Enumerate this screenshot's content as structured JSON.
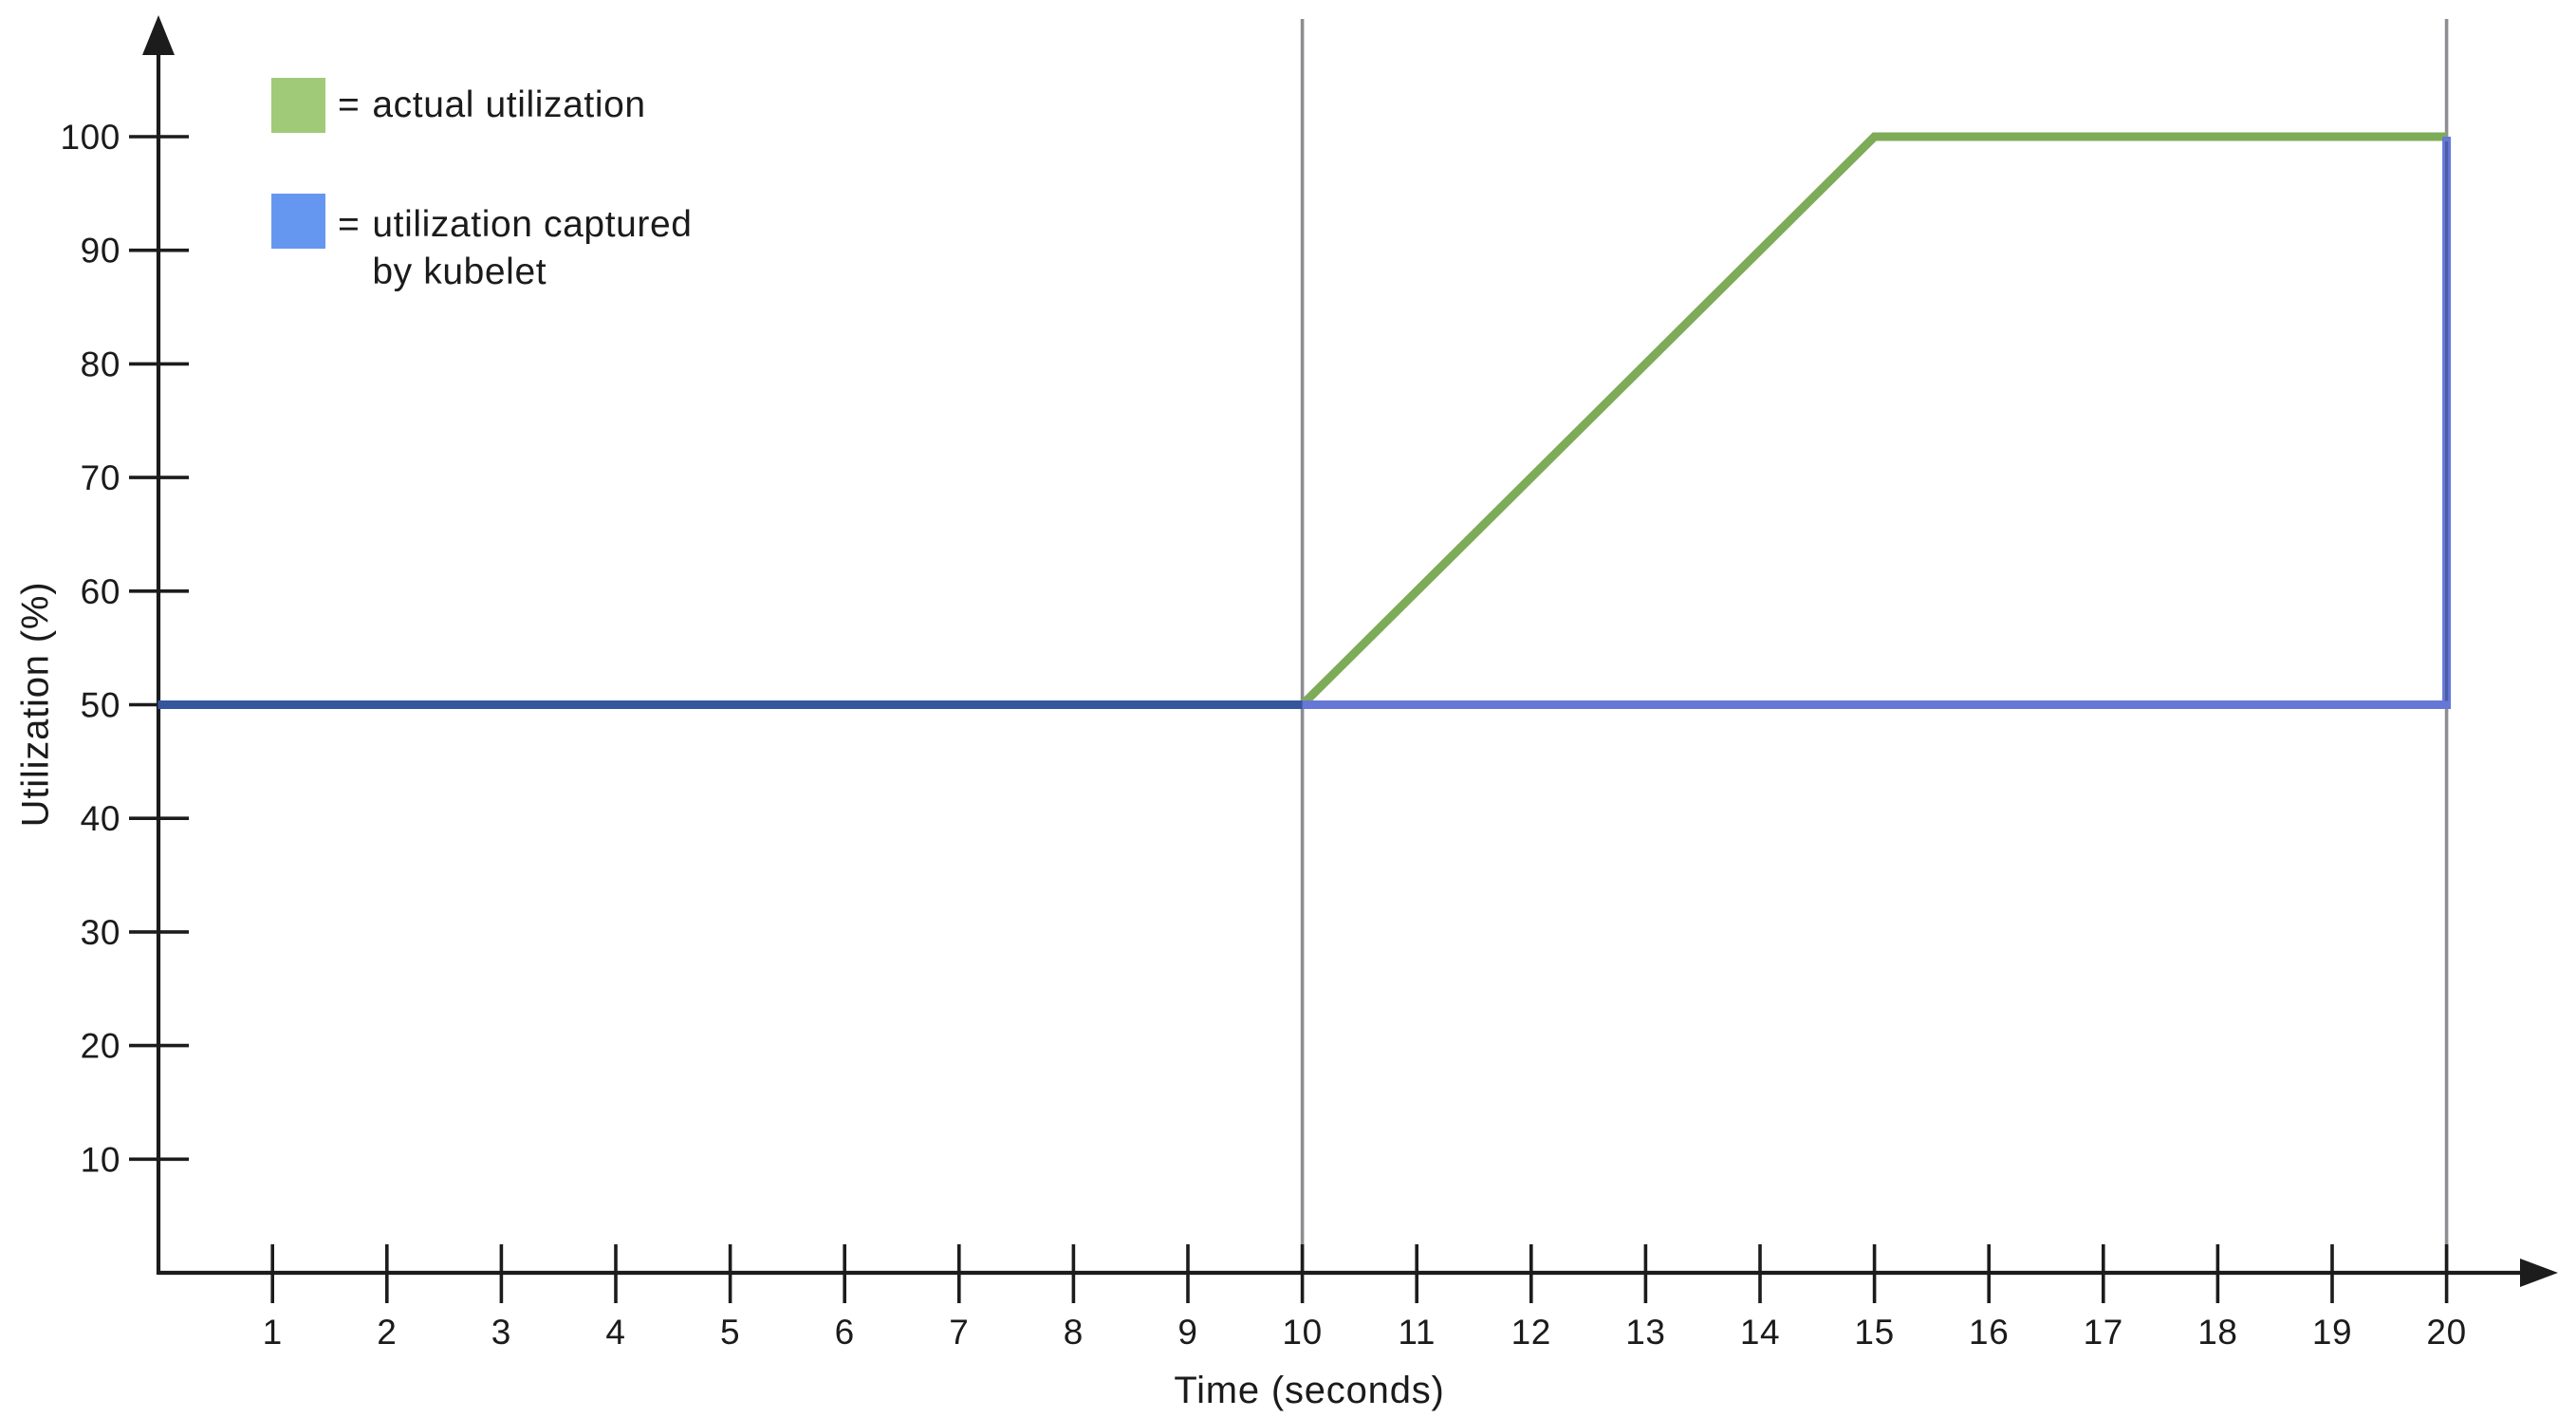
{
  "legend": {
    "items": [
      {
        "swatch_color": "#a0ca78",
        "prefix": "=",
        "lines": [
          "actual utilization"
        ]
      },
      {
        "swatch_color": "#6697f0",
        "prefix": "=",
        "lines": [
          "utilization captured",
          "by kubelet"
        ]
      }
    ]
  },
  "chart_data": {
    "type": "line",
    "title": "",
    "xlabel": "Time (seconds)",
    "ylabel": "Utilization (%)",
    "xlim": [
      0,
      21
    ],
    "ylim": [
      0,
      110
    ],
    "x_ticks": [
      1,
      2,
      3,
      4,
      5,
      6,
      7,
      8,
      9,
      10,
      11,
      12,
      13,
      14,
      15,
      16,
      17,
      18,
      19,
      20
    ],
    "y_ticks": [
      10,
      20,
      30,
      40,
      50,
      60,
      70,
      80,
      90,
      100
    ],
    "vertical_reference_lines_x": [
      10,
      20
    ],
    "grid": "no background grid; only two vertical gray reference lines at x=10 and x=20",
    "legend_position": "top-left inside plot",
    "series": [
      {
        "name": "actual utilization",
        "color": "#7dab58",
        "legend_color": "#a0ca78",
        "points": [
          [
            0,
            50
          ],
          [
            10,
            50
          ],
          [
            15,
            100
          ],
          [
            20,
            100
          ]
        ]
      },
      {
        "name": "utilization captured by kubelet",
        "color": "#6678d6",
        "legend_color": "#6697f0",
        "points": [
          [
            0,
            50
          ],
          [
            10,
            50
          ],
          [
            20,
            50
          ],
          [
            20,
            100
          ]
        ]
      }
    ],
    "overlap_segment": {
      "color": "#35569c",
      "points": [
        [
          0,
          50
        ],
        [
          10,
          50
        ]
      ]
    }
  },
  "colors": {
    "axis": "#1c1c1c",
    "tick_text": "#1b1b1b",
    "gridline": "#8e8e92",
    "gridline_over_blue": "#4d5ca6",
    "background": "#ffffff"
  }
}
